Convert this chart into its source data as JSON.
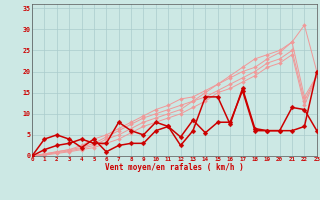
{
  "xlabel": "Vent moyen/en rafales ( km/h )",
  "background_color": "#cce8e4",
  "grid_color": "#aacccc",
  "x_ticks": [
    0,
    1,
    2,
    3,
    4,
    5,
    6,
    7,
    8,
    9,
    10,
    11,
    12,
    13,
    14,
    15,
    16,
    17,
    18,
    19,
    20,
    21,
    22,
    23
  ],
  "y_ticks": [
    0,
    5,
    10,
    15,
    20,
    25,
    30,
    35
  ],
  "xlim": [
    0,
    23
  ],
  "ylim": [
    0,
    36
  ],
  "series_light": [
    [
      0,
      0.5,
      1,
      1.5,
      2.5,
      4,
      5,
      6.5,
      8,
      9.5,
      11,
      12,
      13.5,
      14,
      15.5,
      17,
      19,
      21,
      23,
      24,
      25,
      27,
      31,
      20
    ],
    [
      0,
      0.5,
      1,
      1.5,
      2,
      3,
      4.5,
      6,
      7.5,
      9,
      10,
      11,
      12,
      13,
      15,
      17,
      18.5,
      20,
      21,
      23,
      24.5,
      27,
      14,
      19
    ],
    [
      0,
      0.3,
      0.8,
      1.2,
      1.8,
      2.5,
      4,
      5,
      6.5,
      8,
      9,
      10,
      11,
      13,
      14,
      15.5,
      17,
      18.5,
      20,
      22,
      23,
      25,
      13,
      19
    ],
    [
      0,
      0.2,
      0.6,
      1.0,
      1.5,
      2,
      3,
      4,
      5.5,
      7,
      8,
      9,
      10,
      11.5,
      13,
      15,
      16,
      17.5,
      19,
      21,
      22,
      24,
      12,
      19
    ]
  ],
  "series_dark": [
    [
      0,
      4,
      5,
      4,
      2,
      4,
      1,
      2.5,
      3,
      3,
      6,
      7,
      2.5,
      6,
      14,
      14,
      7.5,
      16,
      6.5,
      6,
      6,
      6,
      7,
      20
    ],
    [
      0,
      1.5,
      2.5,
      3,
      4,
      3,
      3,
      8,
      6,
      5,
      8,
      7,
      4.5,
      8.5,
      5.5,
      8,
      8,
      15.5,
      6,
      6,
      6,
      11.5,
      11,
      6
    ]
  ],
  "light_color": "#f09898",
  "dark_color": "#cc0000",
  "marker_size": 2.0,
  "linewidth_light": 0.7,
  "linewidth_dark": 1.1
}
